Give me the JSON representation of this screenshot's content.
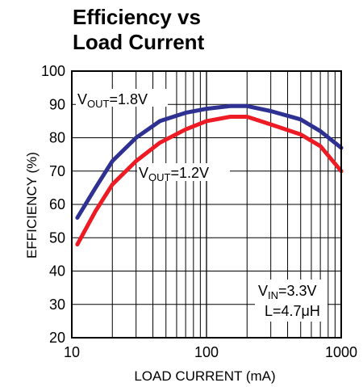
{
  "chart_data": {
    "type": "line",
    "title_lines": [
      "Efficiency vs",
      "Load Current"
    ],
    "xlabel": "LOAD CURRENT (mA)",
    "ylabel": "EFFICIENCY (%)",
    "x_scale": "log",
    "xlim": [
      10,
      1000
    ],
    "ylim": [
      20,
      100
    ],
    "x_ticks": [
      "10",
      "100",
      "1000"
    ],
    "y_ticks": [
      "20",
      "30",
      "40",
      "50",
      "60",
      "70",
      "80",
      "90",
      "100"
    ],
    "grid": true,
    "series": [
      {
        "name": "VOUT=1.8V",
        "label_main": "V",
        "label_sub": "OUT",
        "label_rest": "=1.8V",
        "color": "#2e3192",
        "x": [
          11,
          15,
          20,
          30,
          45,
          70,
          100,
          150,
          200,
          300,
          500,
          700,
          1000
        ],
        "y": [
          56,
          65,
          73,
          80,
          85,
          87.5,
          88.7,
          89.5,
          89.5,
          88,
          85.5,
          82,
          77
        ]
      },
      {
        "name": "VOUT=1.2V",
        "label_main": "V",
        "label_sub": "OUT",
        "label_rest": "=1.2V",
        "color": "#ed1c24",
        "x": [
          11,
          15,
          20,
          30,
          45,
          70,
          100,
          150,
          200,
          300,
          500,
          700,
          1000
        ],
        "y": [
          48,
          58,
          66,
          73,
          78.5,
          82.5,
          85,
          86.3,
          86.3,
          84,
          81,
          77.5,
          70
        ]
      }
    ],
    "annotation": {
      "line1_main": "V",
      "line1_sub": "IN",
      "line1_rest": "=3.3V",
      "line2": "L=4.7μH"
    }
  }
}
